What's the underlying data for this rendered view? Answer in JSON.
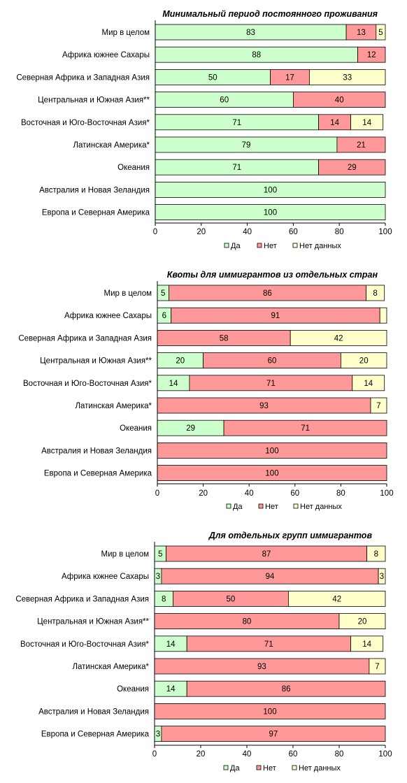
{
  "colors": {
    "yes": "#ccffcc",
    "no": "#ff9999",
    "nodata": "#ffffcc",
    "border": "#000000"
  },
  "legend": [
    "Да",
    "Нет",
    "Нет данных"
  ],
  "chart_data": [
    {
      "type": "bar",
      "stacked": true,
      "orientation": "horizontal",
      "title": "Минимальный период постоянного проживания",
      "xlim": [
        0,
        100
      ],
      "xticks": [
        "0",
        "20",
        "40",
        "60",
        "80",
        "100"
      ],
      "categories": [
        "Мир в целом",
        "Африка южнее Сахары",
        "Северная Африка и Западная Азия",
        "Центральная и Южная Азия**",
        "Восточная и Юго-Восточная Азия*",
        "Латинская Америка*",
        "Океания",
        "Австралия и Новая Зеландия",
        "Европа и Северная Америка"
      ],
      "series": [
        {
          "name": "Да",
          "values": [
            83,
            88,
            50,
            60,
            71,
            79,
            71,
            100,
            100
          ]
        },
        {
          "name": "Нет",
          "values": [
            13,
            12,
            17,
            40,
            14,
            21,
            29,
            0,
            0
          ]
        },
        {
          "name": "Нет данных",
          "values": [
            5,
            0,
            33,
            0,
            14,
            0,
            0,
            0,
            0
          ]
        }
      ]
    },
    {
      "type": "bar",
      "stacked": true,
      "orientation": "horizontal",
      "title": "Квоты для иммигрантов из отдельных стран",
      "xlim": [
        0,
        100
      ],
      "xticks": [
        "0",
        "20",
        "40",
        "60",
        "80",
        "100"
      ],
      "categories": [
        "Мир в целом",
        "Африка южнее Сахары",
        "Северная Африка и Западная Азия",
        "Центральная и Южная Азия**",
        "Восточная и Юго-Восточная Азия*",
        "Латинская Америка*",
        "Океания",
        "Австралия и Новая Зеландия",
        "Европа и Северная Америка"
      ],
      "series": [
        {
          "name": "Да",
          "values": [
            5,
            6,
            0,
            20,
            14,
            0,
            29,
            0,
            0
          ]
        },
        {
          "name": "Нет",
          "values": [
            86,
            91,
            58,
            60,
            71,
            93,
            71,
            100,
            100
          ]
        },
        {
          "name": "Нет данных",
          "values": [
            8,
            3,
            42,
            20,
            14,
            7,
            0,
            0,
            0
          ]
        }
      ],
      "hidden_labels": [
        [
          1,
          2
        ]
      ]
    },
    {
      "type": "bar",
      "stacked": true,
      "orientation": "horizontal",
      "title": "Для отдельных групп иммигрантов",
      "xlim": [
        0,
        100
      ],
      "xticks": [
        "0",
        "20",
        "40",
        "60",
        "80",
        "100"
      ],
      "categories": [
        "Мир в целом",
        "Африка южнее Сахары",
        "Северная Африка и Западная Азия",
        "Центральная и Южная Азия**",
        "Восточная и Юго-Восточная Азия*",
        "Латинская Америка*",
        "Океания",
        "Австралия и Новая Зеландия",
        "Европа и Северная Америка"
      ],
      "series": [
        {
          "name": "Да",
          "values": [
            5,
            3,
            8,
            0,
            14,
            0,
            14,
            0,
            3
          ]
        },
        {
          "name": "Нет",
          "values": [
            87,
            94,
            50,
            80,
            71,
            93,
            86,
            100,
            97
          ]
        },
        {
          "name": "Нет данных",
          "values": [
            8,
            3,
            42,
            20,
            14,
            7,
            0,
            0,
            0
          ]
        }
      ]
    }
  ]
}
